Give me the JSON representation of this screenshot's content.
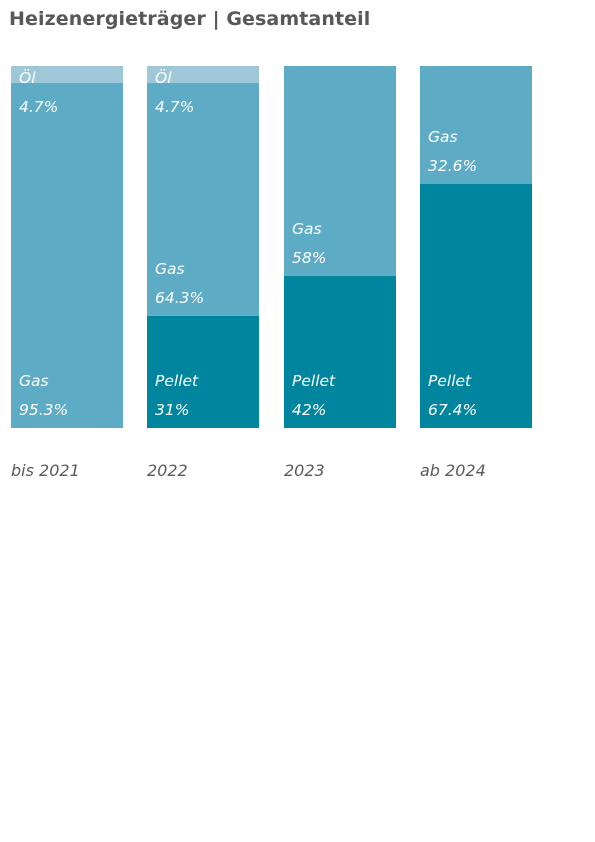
{
  "title": "Heizenergieträger | Gesamtanteil",
  "colors": {
    "Pellet": "#00859f",
    "Gas": "#5eabc5",
    "Öl": "#9ec8d8"
  },
  "chart_data": {
    "type": "bar",
    "stacked": true,
    "title": "Heizenergieträger | Gesamtanteil",
    "categories": [
      "bis 2021",
      "2022",
      "2023",
      "ab 2024"
    ],
    "series": [
      {
        "name": "Pellet",
        "values": [
          0,
          31,
          42,
          67.4
        ],
        "labels": [
          "",
          "31%",
          "42%",
          "67.4%"
        ]
      },
      {
        "name": "Gas",
        "values": [
          95.3,
          64.3,
          58,
          32.6
        ],
        "labels": [
          "95.3%",
          "64.3%",
          "58%",
          "32.6%"
        ]
      },
      {
        "name": "Öl",
        "values": [
          4.7,
          4.7,
          0,
          0
        ],
        "labels": [
          "4.7%",
          "4.7%",
          "",
          ""
        ]
      }
    ],
    "ylim": [
      0,
      100
    ],
    "xlabel": "",
    "ylabel": "",
    "grid": false,
    "legend": "none"
  }
}
